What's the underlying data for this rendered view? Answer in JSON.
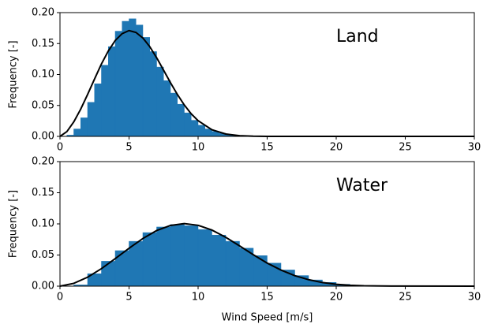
{
  "chart_data": [
    {
      "type": "histogram",
      "annotation": "Land",
      "ylabel": "Frequency [-]",
      "color": "#1f77b4",
      "bins": [
        0,
        0.5,
        1,
        1.5,
        2,
        2.5,
        3,
        3.5,
        4,
        4.5,
        5,
        5.5,
        6,
        6.5,
        7,
        7.5,
        8,
        8.5,
        9,
        9.5,
        10,
        10.5,
        11,
        11.5,
        12,
        12.5,
        13,
        13.5,
        14,
        14.5,
        15,
        15.5,
        16
      ],
      "values": [
        0,
        0.002,
        0.012,
        0.03,
        0.055,
        0.085,
        0.115,
        0.145,
        0.17,
        0.186,
        0.19,
        0.18,
        0.16,
        0.137,
        0.112,
        0.09,
        0.07,
        0.052,
        0.038,
        0.026,
        0.018,
        0.012,
        0.008,
        0.005,
        0.003,
        0.002,
        0.001,
        0.0005,
        0.0003,
        0.0002,
        0.0001,
        0
      ],
      "line": {
        "color": "#000000",
        "x": [
          0,
          0.5,
          1,
          1.5,
          2,
          2.5,
          3,
          3.5,
          4,
          4.5,
          5,
          5.5,
          6,
          6.5,
          7,
          7.5,
          8,
          8.5,
          9,
          9.5,
          10,
          11,
          12,
          13,
          14,
          15,
          20,
          30
        ],
        "values": [
          0,
          0.0077,
          0.0234,
          0.044,
          0.0677,
          0.0926,
          0.117,
          0.138,
          0.155,
          0.166,
          0.171,
          0.168,
          0.159,
          0.145,
          0.127,
          0.107,
          0.0868,
          0.0677,
          0.0508,
          0.0365,
          0.0254,
          0.0107,
          0.0038,
          0.0011,
          0.0003,
          0,
          0,
          0
        ]
      },
      "xlim": [
        0,
        30
      ],
      "xticks": [
        0,
        5,
        10,
        15,
        20,
        25,
        30
      ],
      "ylim": [
        0,
        0.2
      ],
      "yticks": [
        {
          "value": 0,
          "label": "0.00"
        },
        {
          "value": 0.05,
          "label": "0.05"
        },
        {
          "value": 0.1,
          "label": "0.10"
        },
        {
          "value": 0.15,
          "label": "0.15"
        },
        {
          "value": 0.2,
          "label": "0.20"
        }
      ]
    },
    {
      "type": "histogram",
      "annotation": "Water",
      "ylabel": "Frequency [-]",
      "xlabel": "Wind Speed [m/s]",
      "color": "#1f77b4",
      "bins": [
        0,
        1,
        2,
        3,
        4,
        5,
        6,
        7,
        8,
        9,
        10,
        11,
        12,
        13,
        14,
        15,
        16,
        17,
        18,
        19,
        20,
        21,
        22,
        23,
        24
      ],
      "values": [
        0,
        0.002,
        0.02,
        0.04,
        0.057,
        0.072,
        0.086,
        0.095,
        0.099,
        0.097,
        0.091,
        0.082,
        0.072,
        0.061,
        0.049,
        0.037,
        0.026,
        0.017,
        0.01,
        0.006,
        0.003,
        0.0015,
        0.0007,
        0.0003
      ],
      "line": {
        "color": "#000000",
        "x": [
          0,
          1,
          2,
          3,
          4,
          5,
          6,
          7,
          8,
          9,
          10,
          11,
          12,
          13,
          14,
          15,
          16,
          17,
          18,
          19,
          20,
          21,
          22,
          24,
          30
        ],
        "values": [
          0,
          0.0045,
          0.0144,
          0.0281,
          0.0442,
          0.0608,
          0.0765,
          0.0893,
          0.0975,
          0.1004,
          0.0977,
          0.0901,
          0.0785,
          0.0647,
          0.0505,
          0.0371,
          0.0259,
          0.0169,
          0.0104,
          0.0058,
          0.003,
          0.0015,
          0.0007,
          0.0001,
          0
        ]
      },
      "xlim": [
        0,
        30
      ],
      "xticks": [
        0,
        5,
        10,
        15,
        20,
        25,
        30
      ],
      "ylim": [
        0,
        0.2
      ],
      "yticks": [
        {
          "value": 0,
          "label": "0.00"
        },
        {
          "value": 0.05,
          "label": "0.05"
        },
        {
          "value": 0.1,
          "label": "0.10"
        },
        {
          "value": 0.15,
          "label": "0.15"
        },
        {
          "value": 0.2,
          "label": "0.20"
        }
      ]
    }
  ]
}
